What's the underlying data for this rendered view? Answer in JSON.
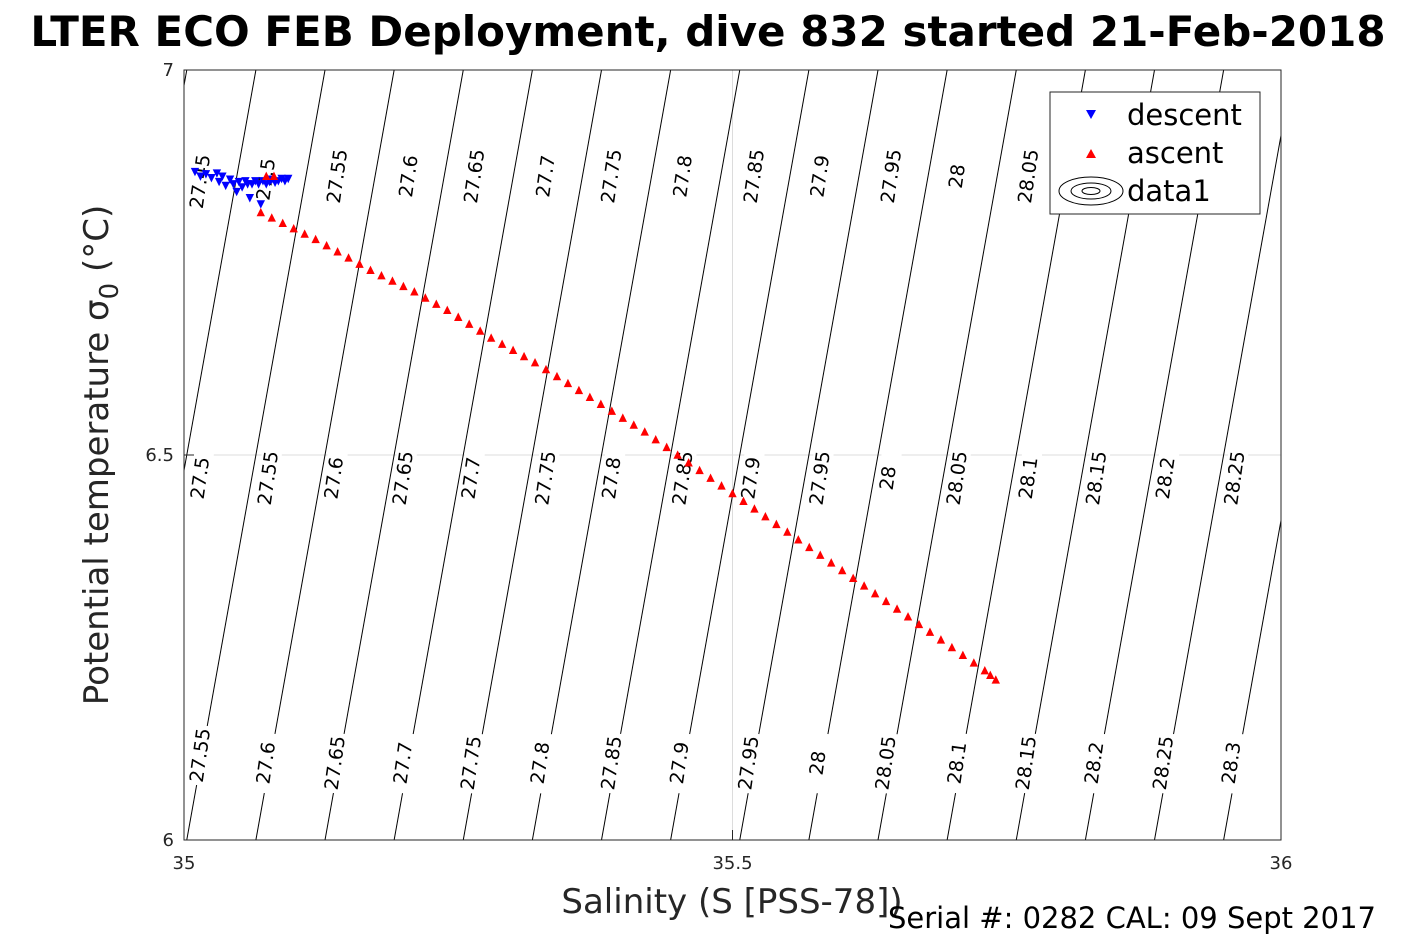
{
  "figure": {
    "title": "LTER ECO FEB Deployment, dive 832 started 21-Feb-2018",
    "footer": "Serial #: 0282  CAL: 09 Sept 2017"
  },
  "chart_data": {
    "type": "scatter",
    "title": "LTER ECO FEB Deployment, dive 832 started 21-Feb-2018",
    "xlabel": "Salinity (S [PSS-78])",
    "ylabel": "Potential temperature σ",
    "ylabel_subscript": "0",
    "ylabel_unit": " (°C)",
    "xlim": [
      35,
      36
    ],
    "ylim": [
      6,
      7
    ],
    "xticks": [
      35,
      35.5,
      36
    ],
    "xtick_labels": [
      "35",
      "35.5",
      "36"
    ],
    "yticks": [
      6,
      6.5,
      7
    ],
    "ytick_labels": [
      "6",
      "6.5",
      "7"
    ],
    "grid": true,
    "legend_position": "top-right",
    "series": [
      {
        "name": "descent",
        "marker": "triangle-down",
        "color": "#0000ff",
        "points": [
          [
            35.01,
            6.868
          ],
          [
            35.015,
            6.862
          ],
          [
            35.02,
            6.865
          ],
          [
            35.025,
            6.86
          ],
          [
            35.03,
            6.866
          ],
          [
            35.032,
            6.855
          ],
          [
            35.035,
            6.862
          ],
          [
            35.038,
            6.85
          ],
          [
            35.042,
            6.858
          ],
          [
            35.045,
            6.852
          ],
          [
            35.048,
            6.842
          ],
          [
            35.05,
            6.855
          ],
          [
            35.053,
            6.848
          ],
          [
            35.056,
            6.856
          ],
          [
            35.058,
            6.852
          ],
          [
            35.06,
            6.834
          ],
          [
            35.062,
            6.852
          ],
          [
            35.065,
            6.856
          ],
          [
            35.068,
            6.852
          ],
          [
            35.07,
            6.826
          ],
          [
            35.072,
            6.856
          ],
          [
            35.075,
            6.852
          ],
          [
            35.078,
            6.855
          ],
          [
            35.08,
            6.858
          ],
          [
            35.083,
            6.854
          ],
          [
            35.086,
            6.856
          ],
          [
            35.089,
            6.859
          ],
          [
            35.092,
            6.856
          ],
          [
            35.095,
            6.859
          ]
        ]
      },
      {
        "name": "ascent",
        "marker": "triangle-up",
        "color": "#ff0000",
        "points": [
          [
            35.075,
            6.862
          ],
          [
            35.082,
            6.862
          ],
          [
            35.07,
            6.815
          ],
          [
            35.08,
            6.808
          ],
          [
            35.09,
            6.801
          ],
          [
            35.1,
            6.794
          ],
          [
            35.11,
            6.787
          ],
          [
            35.12,
            6.78
          ],
          [
            35.13,
            6.772
          ],
          [
            35.14,
            6.764
          ],
          [
            35.15,
            6.756
          ],
          [
            35.16,
            6.748
          ],
          [
            35.17,
            6.74
          ],
          [
            35.18,
            6.733
          ],
          [
            35.19,
            6.726
          ],
          [
            35.2,
            6.719
          ],
          [
            35.21,
            6.712
          ],
          [
            35.22,
            6.704
          ],
          [
            35.23,
            6.696
          ],
          [
            35.24,
            6.688
          ],
          [
            35.25,
            6.679
          ],
          [
            35.26,
            6.67
          ],
          [
            35.27,
            6.661
          ],
          [
            35.28,
            6.652
          ],
          [
            35.29,
            6.644
          ],
          [
            35.3,
            6.636
          ],
          [
            35.31,
            6.628
          ],
          [
            35.32,
            6.62
          ],
          [
            35.33,
            6.611
          ],
          [
            35.34,
            6.602
          ],
          [
            35.35,
            6.593
          ],
          [
            35.36,
            6.584
          ],
          [
            35.37,
            6.575
          ],
          [
            35.38,
            6.566
          ],
          [
            35.39,
            6.557
          ],
          [
            35.4,
            6.548
          ],
          [
            35.41,
            6.539
          ],
          [
            35.42,
            6.53
          ],
          [
            35.43,
            6.52
          ],
          [
            35.44,
            6.51
          ],
          [
            35.45,
            6.5
          ],
          [
            35.46,
            6.49
          ],
          [
            35.47,
            6.48
          ],
          [
            35.48,
            6.47
          ],
          [
            35.49,
            6.46
          ],
          [
            35.5,
            6.45
          ],
          [
            35.51,
            6.44
          ],
          [
            35.52,
            6.43
          ],
          [
            35.53,
            6.42
          ],
          [
            35.54,
            6.41
          ],
          [
            35.55,
            6.4
          ],
          [
            35.56,
            6.39
          ],
          [
            35.57,
            6.38
          ],
          [
            35.58,
            6.37
          ],
          [
            35.59,
            6.36
          ],
          [
            35.6,
            6.35
          ],
          [
            35.61,
            6.34
          ],
          [
            35.62,
            6.33
          ],
          [
            35.63,
            6.32
          ],
          [
            35.64,
            6.31
          ],
          [
            35.65,
            6.3
          ],
          [
            35.66,
            6.29
          ],
          [
            35.67,
            6.28
          ],
          [
            35.68,
            6.27
          ],
          [
            35.69,
            6.26
          ],
          [
            35.7,
            6.25
          ],
          [
            35.71,
            6.24
          ],
          [
            35.72,
            6.23
          ],
          [
            35.73,
            6.22
          ],
          [
            35.735,
            6.214
          ],
          [
            35.74,
            6.208
          ]
        ]
      },
      {
        "name": "data1",
        "marker": "contour",
        "color": "#000000",
        "contour_levels": [
          27.45,
          27.5,
          27.55,
          27.6,
          27.65,
          27.7,
          27.75,
          27.8,
          27.85,
          27.9,
          27.95,
          28,
          28.05,
          28.1,
          28.15,
          28.2,
          28.25,
          28.3
        ],
        "contour_labels": [
          {
            "text": "27.45",
            "x": 35.015,
            "y": 6.855
          },
          {
            "text": "27.5",
            "x": 35.075,
            "y": 6.858
          },
          {
            "text": "27.55",
            "x": 35.14,
            "y": 6.862
          },
          {
            "text": "27.6",
            "x": 35.205,
            "y": 6.862
          },
          {
            "text": "27.65",
            "x": 35.265,
            "y": 6.862
          },
          {
            "text": "27.7",
            "x": 35.33,
            "y": 6.862
          },
          {
            "text": "27.75",
            "x": 35.39,
            "y": 6.862
          },
          {
            "text": "27.8",
            "x": 35.455,
            "y": 6.862
          },
          {
            "text": "27.85",
            "x": 35.52,
            "y": 6.862
          },
          {
            "text": "27.9",
            "x": 35.58,
            "y": 6.862
          },
          {
            "text": "27.95",
            "x": 35.645,
            "y": 6.862
          },
          {
            "text": "28",
            "x": 35.705,
            "y": 6.862
          },
          {
            "text": "28.05",
            "x": 35.77,
            "y": 6.862
          },
          {
            "text": "27.5",
            "x": 35.015,
            "y": 6.47
          },
          {
            "text": "27.55",
            "x": 35.077,
            "y": 6.47
          },
          {
            "text": "27.6",
            "x": 35.137,
            "y": 6.47
          },
          {
            "text": "27.65",
            "x": 35.2,
            "y": 6.47
          },
          {
            "text": "27.7",
            "x": 35.262,
            "y": 6.47
          },
          {
            "text": "27.75",
            "x": 35.33,
            "y": 6.47
          },
          {
            "text": "27.8",
            "x": 35.39,
            "y": 6.47
          },
          {
            "text": "27.85",
            "x": 35.455,
            "y": 6.47
          },
          {
            "text": "27.9",
            "x": 35.517,
            "y": 6.47
          },
          {
            "text": "27.95",
            "x": 35.58,
            "y": 6.47
          },
          {
            "text": "28",
            "x": 35.642,
            "y": 6.47
          },
          {
            "text": "28.05",
            "x": 35.705,
            "y": 6.47
          },
          {
            "text": "28.1",
            "x": 35.77,
            "y": 6.47
          },
          {
            "text": "28.15",
            "x": 35.832,
            "y": 6.47
          },
          {
            "text": "28.2",
            "x": 35.895,
            "y": 6.47
          },
          {
            "text": "28.25",
            "x": 35.958,
            "y": 6.47
          },
          {
            "text": "27.55",
            "x": 35.015,
            "y": 6.11
          },
          {
            "text": "27.6",
            "x": 35.075,
            "y": 6.1
          },
          {
            "text": "27.65",
            "x": 35.138,
            "y": 6.1
          },
          {
            "text": "27.7",
            "x": 35.2,
            "y": 6.1
          },
          {
            "text": "27.75",
            "x": 35.262,
            "y": 6.1
          },
          {
            "text": "27.8",
            "x": 35.325,
            "y": 6.1
          },
          {
            "text": "27.85",
            "x": 35.39,
            "y": 6.1
          },
          {
            "text": "27.9",
            "x": 35.452,
            "y": 6.1
          },
          {
            "text": "27.95",
            "x": 35.515,
            "y": 6.1
          },
          {
            "text": "28",
            "x": 35.578,
            "y": 6.1
          },
          {
            "text": "28.05",
            "x": 35.64,
            "y": 6.1
          },
          {
            "text": "28.1",
            "x": 35.705,
            "y": 6.1
          },
          {
            "text": "28.15",
            "x": 35.768,
            "y": 6.1
          },
          {
            "text": "28.2",
            "x": 35.83,
            "y": 6.1
          },
          {
            "text": "28.25",
            "x": 35.893,
            "y": 6.1
          },
          {
            "text": "28.3",
            "x": 35.955,
            "y": 6.1
          }
        ]
      }
    ]
  }
}
